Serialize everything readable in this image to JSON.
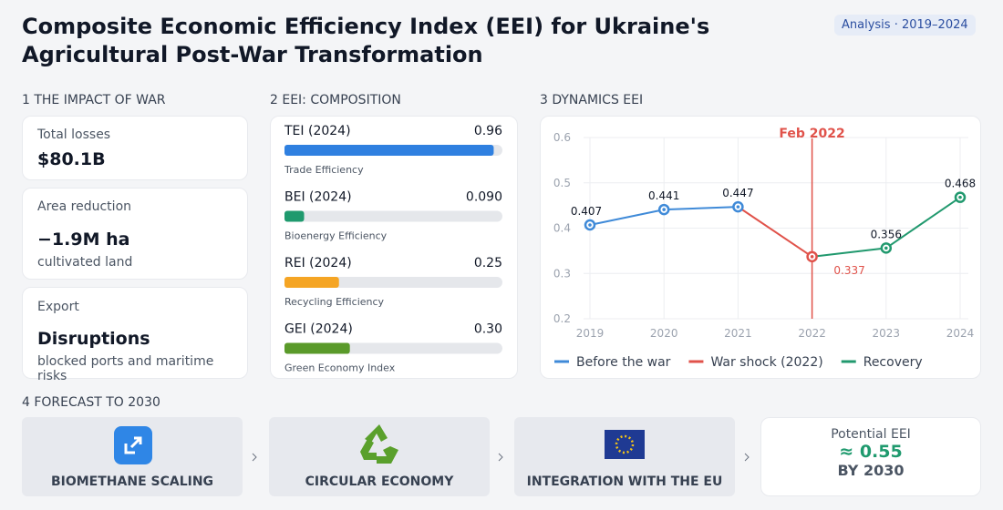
{
  "header": {
    "title": "Composite Economic Efficiency Index (EEI) for Ukraine's Agricultural Post-War Transformation",
    "badge": "Analysis · 2019–2024"
  },
  "sections": [
    "1 THE IMPACT OF WAR",
    "2 EEI: COMPOSITION",
    "3 DYNAMICS EEI",
    "4 FORECAST TO 2030"
  ],
  "impact": [
    {
      "label": "Total losses",
      "value": "$80.1B"
    },
    {
      "label": "Area reduction",
      "value": "−1.9M ha",
      "note": "cultivated land"
    },
    {
      "label": "Export",
      "value": "Disruptions",
      "note": "blocked ports and maritime risks"
    }
  ],
  "chart_data": [
    {
      "type": "bar",
      "orientation": "horizontal",
      "categories": [
        "TEI (2024)",
        "BEI (2024)",
        "REI (2024)",
        "GEI (2024)"
      ],
      "descriptions": [
        "Trade Efficiency",
        "Bioenergy Efficiency",
        "Recycling Efficiency",
        "Green Economy Index"
      ],
      "values": [
        0.96,
        0.09,
        0.25,
        0.3
      ],
      "value_labels": [
        "0.96",
        "0.090",
        "0.25",
        "0.30"
      ],
      "colors": [
        "#2f80e0",
        "#1f9a6e",
        "#f5a524",
        "#5a9a2a"
      ],
      "xlim": [
        0,
        1
      ]
    },
    {
      "type": "line",
      "categories": [
        "2019",
        "2020",
        "2021",
        "2022",
        "2023",
        "2024"
      ],
      "series": [
        {
          "name": "Before the war",
          "color": "#3f8ad8",
          "values": [
            0.407,
            0.441,
            0.447,
            null,
            null,
            null
          ]
        },
        {
          "name": "War shock (2022)",
          "color": "#e0524a",
          "values": [
            null,
            null,
            0.447,
            0.337,
            null,
            null
          ]
        },
        {
          "name": "Recovery",
          "color": "#21996e",
          "values": [
            null,
            null,
            null,
            0.337,
            0.356,
            0.468
          ]
        }
      ],
      "ylim": [
        0.2,
        0.6
      ],
      "yticks": [
        0.2,
        0.3,
        0.4,
        0.5,
        0.6
      ],
      "grid": true,
      "annotation": {
        "text": "Feb 2022",
        "x": "2022"
      }
    }
  ],
  "forecast": {
    "steps": [
      "BIOMETHANE SCALING",
      "CIRCULAR ECONOMY",
      "INTEGRATION WITH THE EU"
    ],
    "result": {
      "label": "Potential EEI",
      "value": "≈ 0.55",
      "note": "BY 2030"
    }
  }
}
